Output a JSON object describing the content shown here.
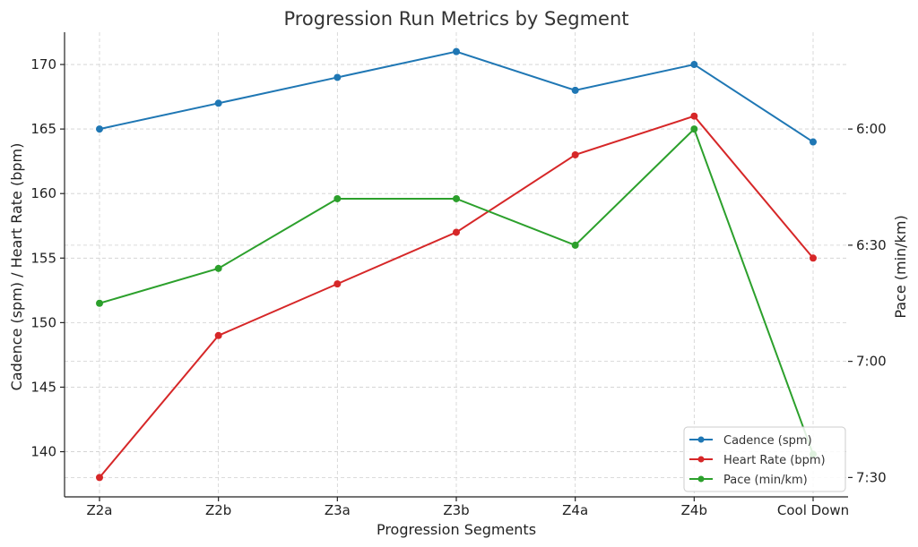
{
  "chart_data": {
    "type": "line",
    "title": "Progression Run Metrics by Segment",
    "xlabel": "Progression Segments",
    "ylabel_left": "Cadence (spm) / Heart Rate (bpm)",
    "ylabel_right": "Pace (min/km)",
    "categories": [
      "Z2a",
      "Z2b",
      "Z3a",
      "Z3b",
      "Z4a",
      "Z4b",
      "Cool Down"
    ],
    "left_ylim": [
      136.5,
      172.5
    ],
    "left_ticks": [
      140,
      145,
      150,
      155,
      160,
      165,
      170
    ],
    "right_ylim": [
      455,
      335
    ],
    "right_ticks": [
      {
        "value": 360,
        "label": "6:00"
      },
      {
        "value": 390,
        "label": "6:30"
      },
      {
        "value": 420,
        "label": "7:00"
      },
      {
        "value": 450,
        "label": "7:30"
      }
    ],
    "grid": true,
    "legend_position": "bottom-right",
    "series": [
      {
        "name": "Cadence (spm)",
        "axis": "left",
        "color": "#1f77b4",
        "values": [
          165,
          167,
          169,
          171,
          168,
          170,
          164
        ]
      },
      {
        "name": "Heart Rate (bpm)",
        "axis": "left",
        "color": "#d62728",
        "values": [
          138,
          149,
          153,
          157,
          163,
          166,
          155
        ]
      },
      {
        "name": "Pace (min/km)",
        "axis": "right",
        "color": "#2ca02c",
        "values": [
          405,
          396,
          378,
          378,
          390,
          360,
          444
        ]
      }
    ]
  }
}
